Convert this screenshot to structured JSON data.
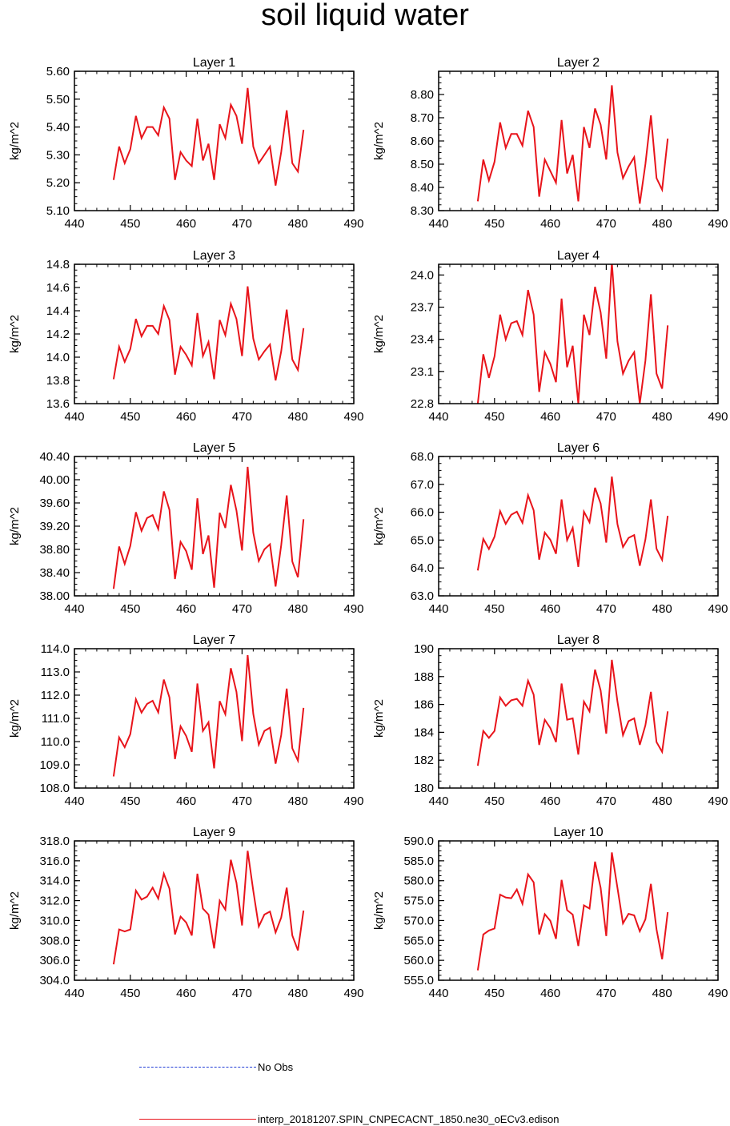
{
  "title": "soil liquid water",
  "colors": {
    "model_line": "#e8141b",
    "obs_line": "#1f3bd6",
    "axis": "#000000"
  },
  "legend": [
    {
      "label": "No Obs",
      "style": "dashed",
      "color": "#1f3bd6"
    },
    {
      "label": "interp_20181207.SPIN_CNPECACNT_1850.ne30_oECv3.edison",
      "style": "solid",
      "color": "#e8141b"
    }
  ],
  "chart_data": [
    {
      "type": "line",
      "title": "Layer 1",
      "ylabel": "kg/m^2",
      "xlabel": "",
      "xlim": [
        440,
        490
      ],
      "xticks": [
        "440",
        "450",
        "460",
        "470",
        "480",
        "490"
      ],
      "ylim": [
        5.1,
        5.6
      ],
      "yticks": [
        "5.10",
        "5.20",
        "5.30",
        "5.40",
        "5.50",
        "5.60"
      ],
      "x": [
        447,
        448,
        449,
        450,
        451,
        452,
        453,
        454,
        455,
        456,
        457,
        458,
        459,
        460,
        461,
        462,
        463,
        464,
        465,
        466,
        467,
        468,
        469,
        470,
        471,
        472,
        473,
        474,
        475,
        476,
        477,
        478,
        479,
        480,
        481
      ],
      "series": [
        {
          "name": "interp_20181207.SPIN_CNPECACNT_1850.ne30_oECv3.edison",
          "values": [
            5.21,
            5.33,
            5.27,
            5.32,
            5.44,
            5.36,
            5.4,
            5.4,
            5.37,
            5.47,
            5.43,
            5.21,
            5.31,
            5.28,
            5.26,
            5.43,
            5.28,
            5.34,
            5.21,
            5.41,
            5.36,
            5.48,
            5.44,
            5.34,
            5.54,
            5.33,
            5.27,
            5.3,
            5.33,
            5.19,
            5.31,
            5.46,
            5.27,
            5.24,
            5.39
          ]
        }
      ]
    },
    {
      "type": "line",
      "title": "Layer 2",
      "ylabel": "kg/m^2",
      "xlabel": "",
      "xlim": [
        440,
        490
      ],
      "xticks": [
        "440",
        "450",
        "460",
        "470",
        "480",
        "490"
      ],
      "ylim": [
        8.3,
        8.9
      ],
      "yticks": [
        "8.30",
        "8.40",
        "8.50",
        "8.60",
        "8.70",
        "8.80"
      ],
      "x": [
        447,
        448,
        449,
        450,
        451,
        452,
        453,
        454,
        455,
        456,
        457,
        458,
        459,
        460,
        461,
        462,
        463,
        464,
        465,
        466,
        467,
        468,
        469,
        470,
        471,
        472,
        473,
        474,
        475,
        476,
        477,
        478,
        479,
        480,
        481
      ],
      "series": [
        {
          "name": "interp_20181207.SPIN_CNPECACNT_1850.ne30_oECv3.edison",
          "values": [
            8.34,
            8.52,
            8.43,
            8.51,
            8.68,
            8.57,
            8.63,
            8.63,
            8.58,
            8.73,
            8.66,
            8.36,
            8.52,
            8.47,
            8.42,
            8.69,
            8.46,
            8.54,
            8.34,
            8.66,
            8.57,
            8.74,
            8.67,
            8.52,
            8.84,
            8.55,
            8.44,
            8.49,
            8.53,
            8.33,
            8.5,
            8.71,
            8.44,
            8.39,
            8.61
          ]
        }
      ]
    },
    {
      "type": "line",
      "title": "Layer 3",
      "ylabel": "kg/m^2",
      "xlabel": "",
      "xlim": [
        440,
        490
      ],
      "xticks": [
        "440",
        "450",
        "460",
        "470",
        "480",
        "490"
      ],
      "ylim": [
        13.6,
        14.8
      ],
      "yticks": [
        "13.6",
        "13.8",
        "14.0",
        "14.2",
        "14.4",
        "14.6",
        "14.8"
      ],
      "x": [
        447,
        448,
        449,
        450,
        451,
        452,
        453,
        454,
        455,
        456,
        457,
        458,
        459,
        460,
        461,
        462,
        463,
        464,
        465,
        466,
        467,
        468,
        469,
        470,
        471,
        472,
        473,
        474,
        475,
        476,
        477,
        478,
        479,
        480,
        481
      ],
      "series": [
        {
          "name": "interp_20181207.SPIN_CNPECACNT_1850.ne30_oECv3.edison",
          "values": [
            13.81,
            14.09,
            13.96,
            14.07,
            14.33,
            14.18,
            14.27,
            14.27,
            14.2,
            14.44,
            14.32,
            13.85,
            14.09,
            14.02,
            13.93,
            14.38,
            14.01,
            14.13,
            13.81,
            14.32,
            14.19,
            14.46,
            14.33,
            14.01,
            14.61,
            14.16,
            13.98,
            14.05,
            14.11,
            13.8,
            14.05,
            14.41,
            13.98,
            13.89,
            14.25
          ]
        }
      ]
    },
    {
      "type": "line",
      "title": "Layer 4",
      "ylabel": "kg/m^2",
      "xlabel": "",
      "xlim": [
        440,
        490
      ],
      "xticks": [
        "440",
        "450",
        "460",
        "470",
        "480",
        "490"
      ],
      "ylim": [
        22.8,
        24.1
      ],
      "yticks": [
        "22.8",
        "23.1",
        "23.4",
        "23.7",
        "24.0"
      ],
      "x": [
        447,
        448,
        449,
        450,
        451,
        452,
        453,
        454,
        455,
        456,
        457,
        458,
        459,
        460,
        461,
        462,
        463,
        464,
        465,
        466,
        467,
        468,
        469,
        470,
        471,
        472,
        473,
        474,
        475,
        476,
        477,
        478,
        479,
        480,
        481
      ],
      "series": [
        {
          "name": "interp_20181207.SPIN_CNPECACNT_1850.ne30_oECv3.edison",
          "values": [
            22.8,
            23.26,
            23.04,
            23.24,
            23.63,
            23.4,
            23.55,
            23.57,
            23.44,
            23.86,
            23.63,
            22.91,
            23.28,
            23.17,
            23.0,
            23.78,
            23.14,
            23.34,
            22.8,
            23.63,
            23.44,
            23.89,
            23.65,
            23.22,
            24.12,
            23.38,
            23.08,
            23.2,
            23.28,
            22.8,
            23.2,
            23.82,
            23.08,
            22.94,
            23.53
          ]
        }
      ]
    },
    {
      "type": "line",
      "title": "Layer 5",
      "ylabel": "kg/m^2",
      "xlabel": "",
      "xlim": [
        440,
        490
      ],
      "xticks": [
        "440",
        "450",
        "460",
        "470",
        "480",
        "490"
      ],
      "ylim": [
        38.0,
        40.4
      ],
      "yticks": [
        "38.00",
        "38.40",
        "38.80",
        "39.20",
        "39.60",
        "40.00",
        "40.40"
      ],
      "x": [
        447,
        448,
        449,
        450,
        451,
        452,
        453,
        454,
        455,
        456,
        457,
        458,
        459,
        460,
        461,
        462,
        463,
        464,
        465,
        466,
        467,
        468,
        469,
        470,
        471,
        472,
        473,
        474,
        475,
        476,
        477,
        478,
        479,
        480,
        481
      ],
      "series": [
        {
          "name": "interp_20181207.SPIN_CNPECACNT_1850.ne30_oECv3.edison",
          "values": [
            38.12,
            38.85,
            38.55,
            38.86,
            39.44,
            39.12,
            39.34,
            39.39,
            39.15,
            39.8,
            39.48,
            38.29,
            38.93,
            38.77,
            38.45,
            39.68,
            38.72,
            39.04,
            38.14,
            39.43,
            39.17,
            39.91,
            39.47,
            38.78,
            40.22,
            39.09,
            38.6,
            38.8,
            38.89,
            38.16,
            38.87,
            39.73,
            38.59,
            38.32,
            39.32
          ]
        }
      ]
    },
    {
      "type": "line",
      "title": "Layer 6",
      "ylabel": "kg/m^2",
      "xlabel": "",
      "xlim": [
        440,
        490
      ],
      "xticks": [
        "440",
        "450",
        "460",
        "470",
        "480",
        "490"
      ],
      "ylim": [
        63.0,
        68.0
      ],
      "yticks": [
        "63.0",
        "64.0",
        "65.0",
        "66.0",
        "67.0",
        "68.0"
      ],
      "x": [
        447,
        448,
        449,
        450,
        451,
        452,
        453,
        454,
        455,
        456,
        457,
        458,
        459,
        460,
        461,
        462,
        463,
        464,
        465,
        466,
        467,
        468,
        469,
        470,
        471,
        472,
        473,
        474,
        475,
        476,
        477,
        478,
        479,
        480,
        481
      ],
      "series": [
        {
          "name": "interp_20181207.SPIN_CNPECACNT_1850.ne30_oECv3.edison",
          "values": [
            63.91,
            65.04,
            64.68,
            65.12,
            66.04,
            65.58,
            65.91,
            66.02,
            65.62,
            66.61,
            66.07,
            64.3,
            65.27,
            65.01,
            64.51,
            66.46,
            65.0,
            65.44,
            64.04,
            66.02,
            65.64,
            66.88,
            66.31,
            64.91,
            67.28,
            65.57,
            64.75,
            65.08,
            65.18,
            64.08,
            65.02,
            66.46,
            64.69,
            64.29,
            65.87
          ]
        }
      ]
    },
    {
      "type": "line",
      "title": "Layer 7",
      "ylabel": "kg/m^2",
      "xlabel": "",
      "xlim": [
        440,
        490
      ],
      "xticks": [
        "440",
        "450",
        "460",
        "470",
        "480",
        "490"
      ],
      "ylim": [
        108.0,
        114.0
      ],
      "yticks": [
        "108.0",
        "109.0",
        "110.0",
        "111.0",
        "112.0",
        "113.0",
        "114.0"
      ],
      "x": [
        447,
        448,
        449,
        450,
        451,
        452,
        453,
        454,
        455,
        456,
        457,
        458,
        459,
        460,
        461,
        462,
        463,
        464,
        465,
        466,
        467,
        468,
        469,
        470,
        471,
        472,
        473,
        474,
        475,
        476,
        477,
        478,
        479,
        480,
        481
      ],
      "series": [
        {
          "name": "interp_20181207.SPIN_CNPECACNT_1850.ne30_oECv3.edison",
          "values": [
            108.5,
            110.18,
            109.76,
            110.32,
            111.82,
            111.25,
            111.62,
            111.76,
            111.26,
            112.67,
            111.9,
            109.25,
            110.66,
            110.24,
            109.56,
            112.5,
            110.46,
            110.83,
            108.85,
            111.74,
            111.18,
            113.16,
            112.14,
            110.02,
            113.72,
            111.2,
            109.87,
            110.46,
            110.6,
            109.05,
            110.28,
            112.28,
            109.71,
            109.18,
            111.45
          ]
        }
      ]
    },
    {
      "type": "line",
      "title": "Layer 8",
      "ylabel": "kg/m^2",
      "xlabel": "",
      "xlim": [
        440,
        490
      ],
      "xticks": [
        "440",
        "450",
        "460",
        "470",
        "480",
        "490"
      ],
      "ylim": [
        180,
        190
      ],
      "yticks": [
        "180",
        "182",
        "184",
        "186",
        "188",
        "190"
      ],
      "x": [
        447,
        448,
        449,
        450,
        451,
        452,
        453,
        454,
        455,
        456,
        457,
        458,
        459,
        460,
        461,
        462,
        463,
        464,
        465,
        466,
        467,
        468,
        469,
        470,
        471,
        472,
        473,
        474,
        475,
        476,
        477,
        478,
        479,
        480,
        481
      ],
      "series": [
        {
          "name": "interp_20181207.SPIN_CNPECACNT_1850.ne30_oECv3.edison",
          "values": [
            181.6,
            184.1,
            183.6,
            184.1,
            186.5,
            185.9,
            186.3,
            186.4,
            185.9,
            187.7,
            186.7,
            183.1,
            184.9,
            184.3,
            183.3,
            187.5,
            184.9,
            185.0,
            182.4,
            186.2,
            185.5,
            188.5,
            187.0,
            183.9,
            189.2,
            186.2,
            183.8,
            184.8,
            185.0,
            183.1,
            184.5,
            186.9,
            183.3,
            182.6,
            185.5
          ]
        }
      ]
    },
    {
      "type": "line",
      "title": "Layer 9",
      "ylabel": "kg/m^2",
      "xlabel": "",
      "xlim": [
        440,
        490
      ],
      "xticks": [
        "440",
        "450",
        "460",
        "470",
        "480",
        "490"
      ],
      "ylim": [
        304.0,
        318.0
      ],
      "yticks": [
        "304.0",
        "306.0",
        "308.0",
        "310.0",
        "312.0",
        "314.0",
        "316.0",
        "318.0"
      ],
      "x": [
        447,
        448,
        449,
        450,
        451,
        452,
        453,
        454,
        455,
        456,
        457,
        458,
        459,
        460,
        461,
        462,
        463,
        464,
        465,
        466,
        467,
        468,
        469,
        470,
        471,
        472,
        473,
        474,
        475,
        476,
        477,
        478,
        479,
        480,
        481
      ],
      "series": [
        {
          "name": "interp_20181207.SPIN_CNPECACNT_1850.ne30_oECv3.edison",
          "values": [
            305.6,
            309.1,
            308.9,
            309.1,
            313.0,
            312.1,
            312.4,
            313.3,
            312.2,
            314.7,
            313.2,
            308.6,
            310.4,
            309.8,
            308.5,
            314.7,
            311.2,
            310.6,
            307.2,
            312.0,
            311.1,
            316.1,
            313.8,
            309.5,
            317.0,
            313.0,
            309.4,
            310.6,
            310.9,
            308.8,
            310.3,
            313.3,
            308.5,
            307.0,
            311.0
          ]
        }
      ]
    },
    {
      "type": "line",
      "title": "Layer 10",
      "ylabel": "kg/m^2",
      "xlabel": "",
      "xlim": [
        440,
        490
      ],
      "xticks": [
        "440",
        "450",
        "460",
        "470",
        "480",
        "490"
      ],
      "ylim": [
        555.0,
        590.0
      ],
      "yticks": [
        "555.0",
        "560.0",
        "565.0",
        "570.0",
        "575.0",
        "580.0",
        "585.0",
        "590.0"
      ],
      "x": [
        447,
        448,
        449,
        450,
        451,
        452,
        453,
        454,
        455,
        456,
        457,
        458,
        459,
        460,
        461,
        462,
        463,
        464,
        465,
        466,
        467,
        468,
        469,
        470,
        471,
        472,
        473,
        474,
        475,
        476,
        477,
        478,
        479,
        480,
        481
      ],
      "series": [
        {
          "name": "interp_20181207.SPIN_CNPECACNT_1850.ne30_oECv3.edison",
          "values": [
            557.5,
            566.5,
            567.5,
            568.0,
            576.5,
            575.8,
            575.6,
            577.8,
            574.2,
            581.6,
            579.6,
            566.5,
            571.6,
            569.9,
            565.4,
            580.2,
            572.6,
            571.5,
            563.6,
            573.8,
            573.0,
            584.8,
            578.2,
            566.1,
            587.1,
            578.2,
            569.3,
            571.7,
            571.3,
            567.3,
            570.3,
            579.2,
            567.8,
            560.3,
            572.1
          ]
        }
      ]
    }
  ]
}
